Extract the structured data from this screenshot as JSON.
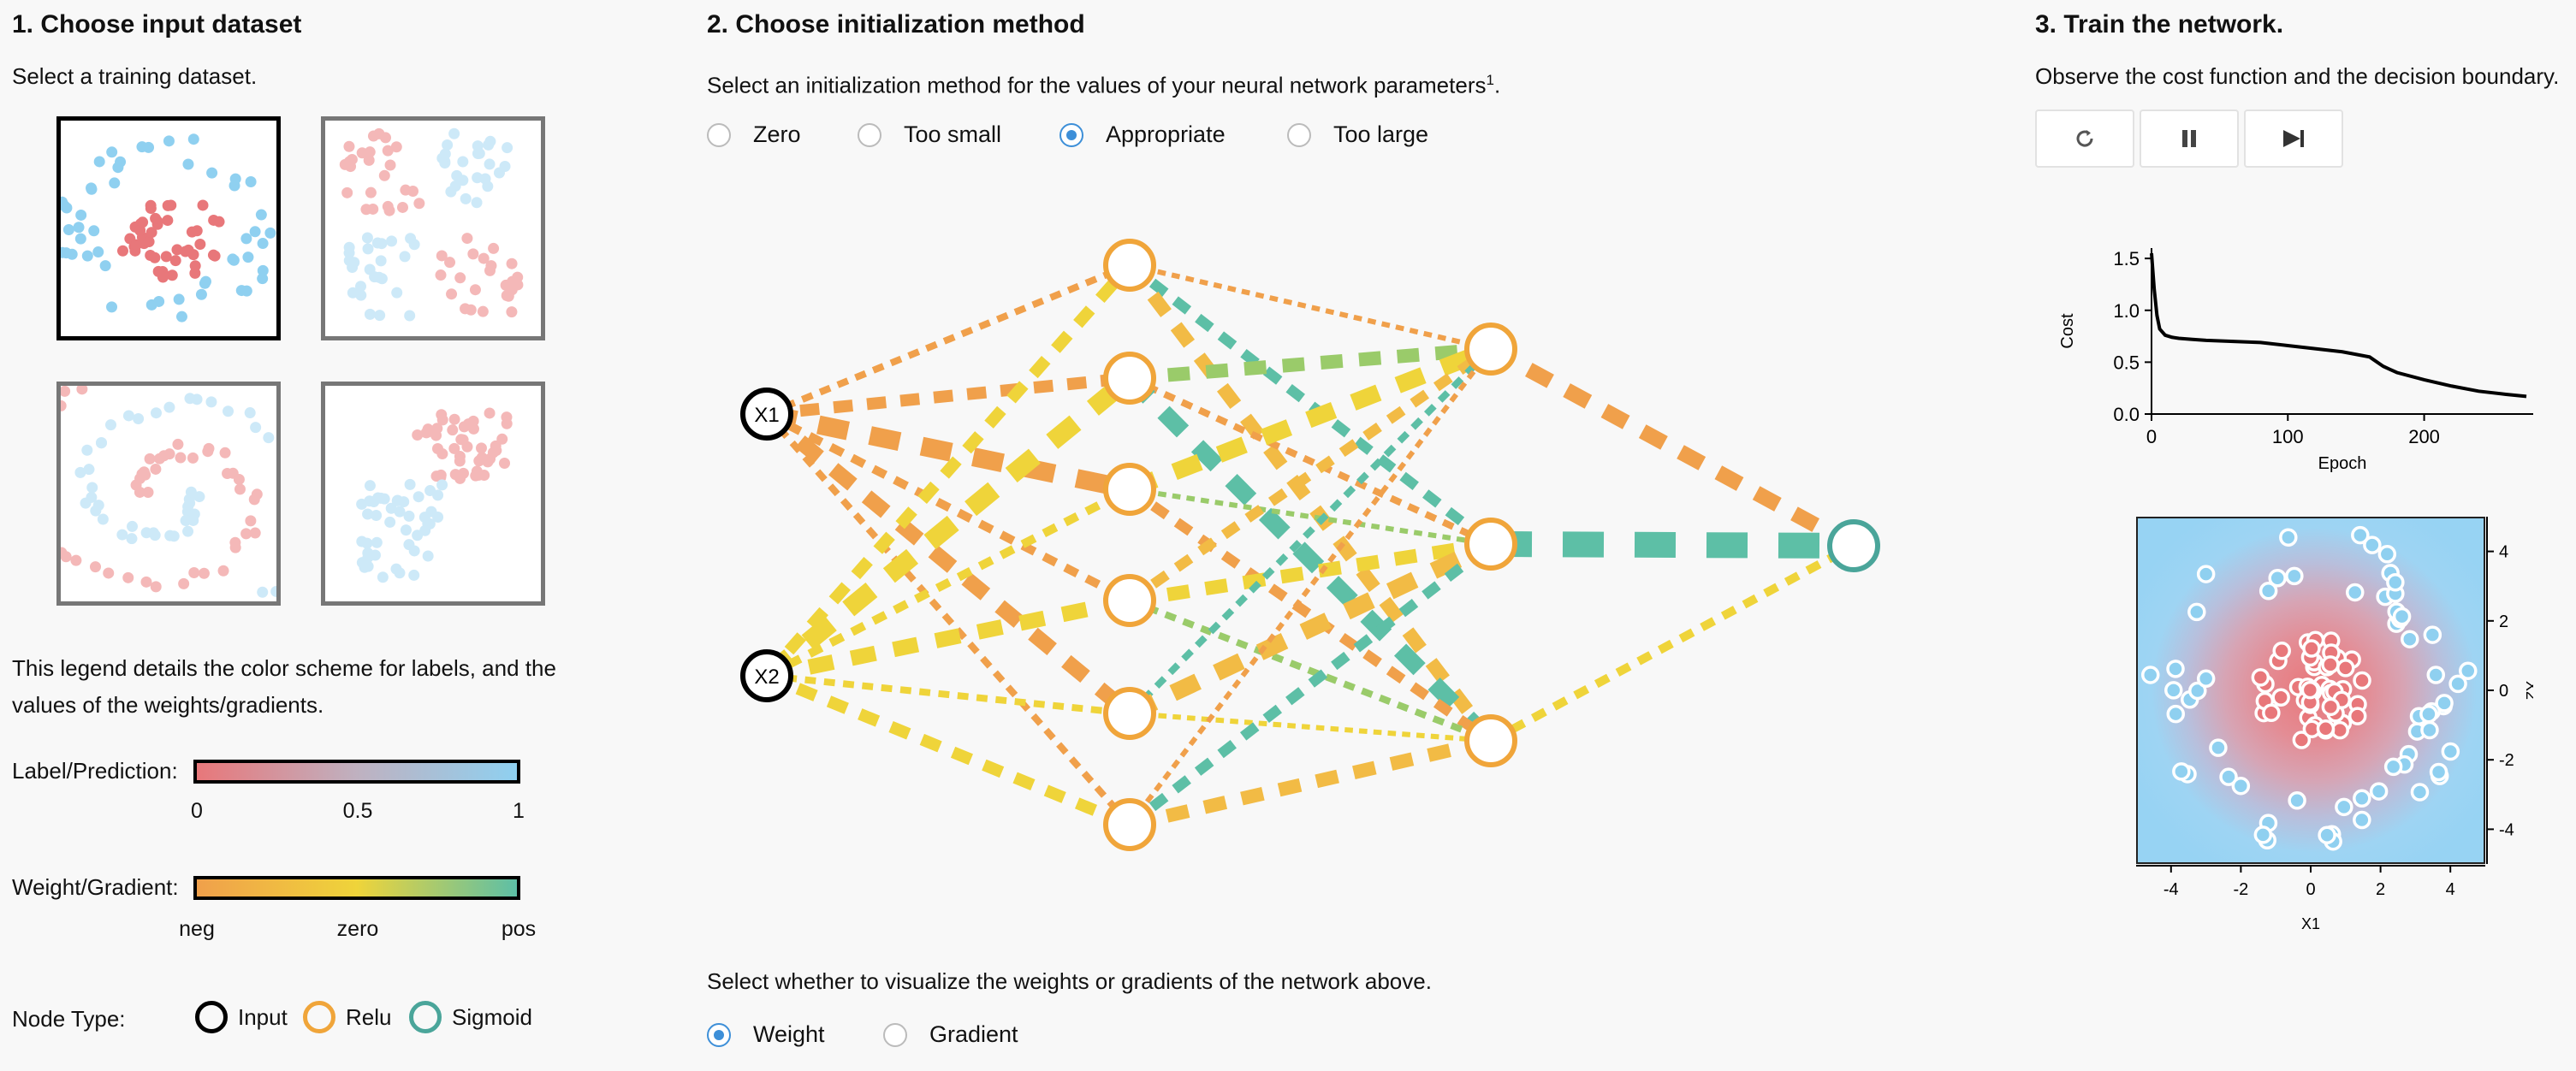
{
  "section1": {
    "heading": "1. Choose input dataset",
    "subtitle": "Select a training dataset.",
    "legend_text": "This legend details the color scheme for labels, and the values of the weights/gradients.",
    "label_legend": {
      "label": "Label/Prediction:",
      "ticks": [
        "0",
        "0.5",
        "1"
      ]
    },
    "weight_legend": {
      "label": "Weight/Gradient:",
      "ticks": [
        "neg",
        "zero",
        "pos"
      ]
    },
    "node_type": {
      "label": "Node Type:",
      "items": [
        "Input",
        "Relu",
        "Sigmoid"
      ]
    }
  },
  "section2": {
    "heading": "2. Choose initialization method",
    "subtitle": "Select an initialization method for the values of your neural network parameters",
    "footnote": "1",
    "options": [
      "Zero",
      "Too small",
      "Appropriate",
      "Too large"
    ],
    "selected": "Appropriate",
    "inputs": [
      "X1",
      "X2"
    ],
    "viz_prompt": "Select whether to visualize the weights or gradients of the network above.",
    "viz_options": [
      "Weight",
      "Gradient"
    ],
    "viz_selected": "Weight"
  },
  "section3": {
    "heading": "3. Train the network.",
    "subtitle": "Observe the cost function and the decision boundary."
  },
  "colors": {
    "neg_label": "#e8777a",
    "pos_label": "#8fd0f0",
    "neg_weight": "#f0a04b",
    "zero_weight": "#efd43a",
    "pos_weight": "#5dbfa6",
    "relu": "#f0a53a",
    "sigmoid": "#4aa59a",
    "radio_active": "#3d8fd8"
  },
  "chart_data": [
    {
      "type": "line",
      "xlabel": "Epoch",
      "ylabel": "Cost",
      "xlim": [
        0,
        280
      ],
      "ylim": [
        0,
        1.6
      ],
      "xticks": [
        0,
        100,
        200
      ],
      "yticks": [
        "0.0",
        "0.5",
        "1.0",
        "1.5"
      ],
      "x": [
        0,
        2,
        4,
        6,
        10,
        15,
        20,
        30,
        40,
        60,
        80,
        100,
        120,
        140,
        160,
        170,
        180,
        200,
        220,
        240,
        260,
        275
      ],
      "y": [
        1.55,
        1.2,
        0.95,
        0.82,
        0.76,
        0.74,
        0.73,
        0.72,
        0.71,
        0.7,
        0.69,
        0.66,
        0.63,
        0.6,
        0.55,
        0.46,
        0.4,
        0.33,
        0.27,
        0.22,
        0.19,
        0.17
      ]
    },
    {
      "type": "scatter",
      "xlabel": "X1",
      "ylabel": "X2",
      "xlim": [
        -5,
        5
      ],
      "ylim": [
        -5,
        5
      ],
      "xticks": [
        "-4",
        "-2",
        "0",
        "2",
        "4"
      ],
      "yticks": [
        "4",
        "2",
        "0",
        "-2",
        "-4"
      ]
    }
  ]
}
